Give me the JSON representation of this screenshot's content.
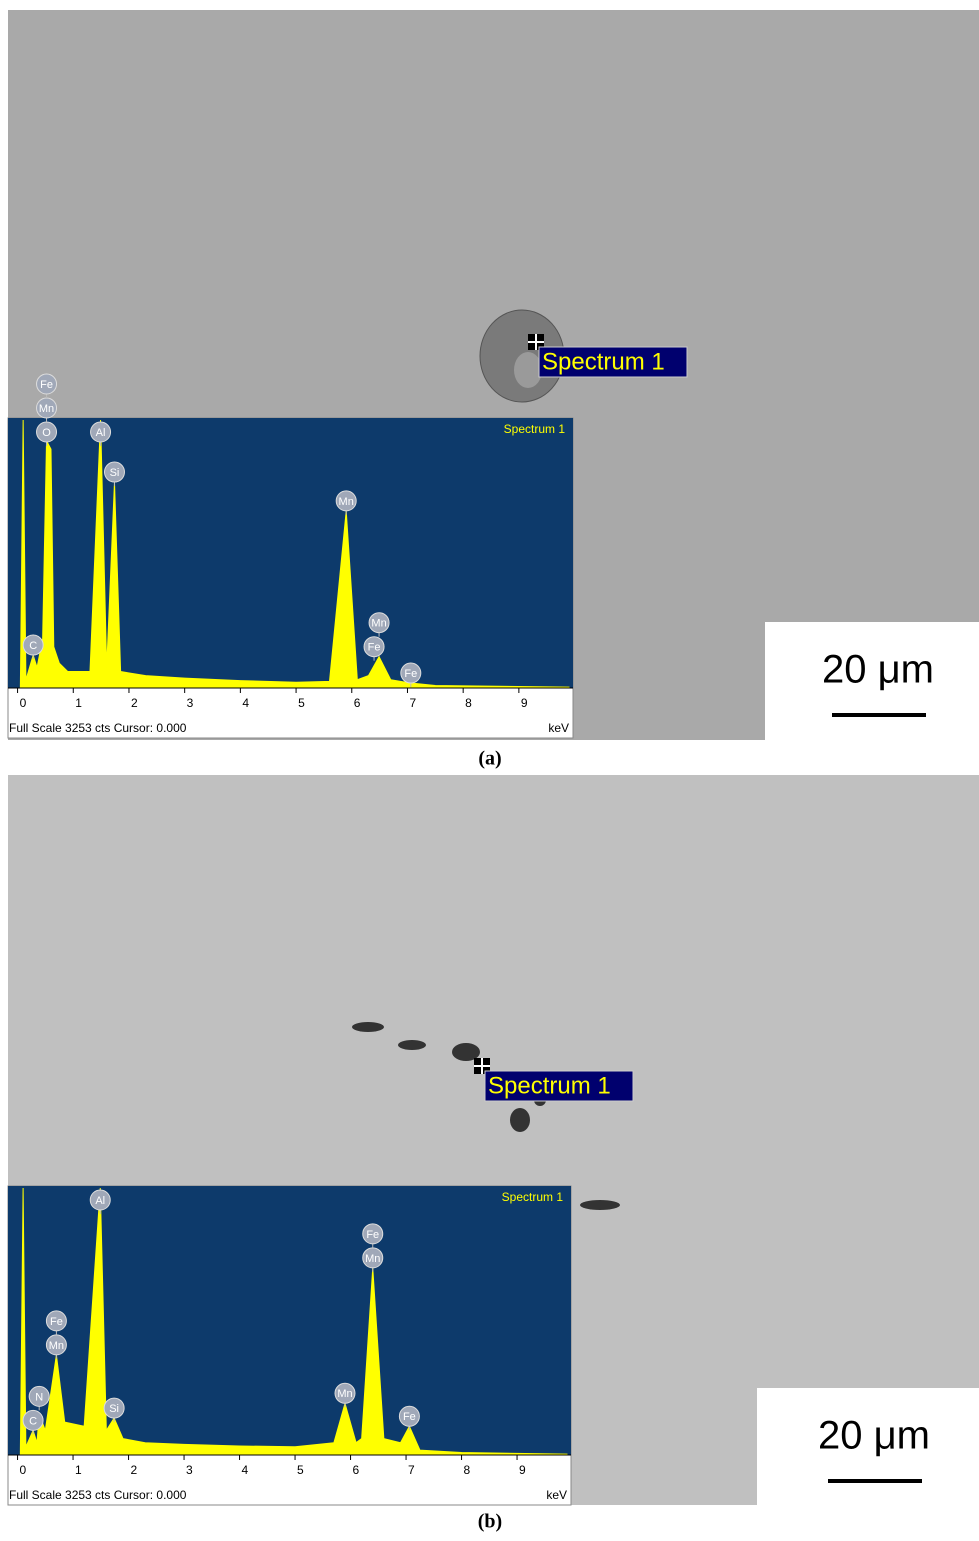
{
  "panels": [
    {
      "caption": "(a)",
      "marker_label": "Spectrum 1",
      "scale_bar": "20 μm"
    },
    {
      "caption": "(b)",
      "marker_label": "Spectrum 1",
      "scale_bar": "20 μm"
    }
  ],
  "chart_data": [
    {
      "type": "area",
      "title": "Spectrum 1",
      "footer": "Full Scale 3253 cts Cursor: 0.000",
      "x_label": "keV",
      "color": "#ffff00",
      "x": [
        0.05,
        0.1,
        0.15,
        0.28,
        0.35,
        0.45,
        0.52,
        0.6,
        0.65,
        0.75,
        0.9,
        1.3,
        1.49,
        1.6,
        1.74,
        1.85,
        2.3,
        3,
        4,
        5,
        5.6,
        5.9,
        6.1,
        6.3,
        6.49,
        6.7,
        7.06,
        7.5,
        9.9
      ],
      "values": [
        0,
        3253,
        100,
        400,
        250,
        600,
        3000,
        2900,
        500,
        300,
        200,
        200,
        3253,
        250,
        2500,
        200,
        150,
        120,
        90,
        70,
        80,
        2150,
        100,
        150,
        380,
        100,
        60,
        30,
        10
      ],
      "peaks": [
        {
          "label": "C",
          "x": 0.28
        },
        {
          "label": "O",
          "x": 0.52
        },
        {
          "label": "Mn",
          "x": 0.52
        },
        {
          "label": "Fe",
          "x": 0.52
        },
        {
          "label": "Al",
          "x": 1.49
        },
        {
          "label": "Si",
          "x": 1.74
        },
        {
          "label": "Mn",
          "x": 5.9
        },
        {
          "label": "Fe",
          "x": 6.4
        },
        {
          "label": "Mn",
          "x": 6.49
        },
        {
          "label": "Fe",
          "x": 7.06
        }
      ],
      "xlim": [
        -0.1,
        9.9
      ],
      "xticks": [
        0,
        1,
        2,
        3,
        4,
        5,
        6,
        7,
        8,
        9
      ],
      "ylim": [
        0,
        3253
      ]
    },
    {
      "type": "area",
      "title": "Spectrum 1",
      "footer": "Full Scale 3253 cts Cursor: 0.000",
      "x_label": "keV",
      "color": "#ffff00",
      "x": [
        0.05,
        0.1,
        0.15,
        0.28,
        0.35,
        0.39,
        0.5,
        0.7,
        0.85,
        1.2,
        1.49,
        1.6,
        1.74,
        1.9,
        2.3,
        3,
        4,
        5,
        5.7,
        5.9,
        6.1,
        6.2,
        6.4,
        6.6,
        6.9,
        7.06,
        7.25,
        8,
        9.9
      ],
      "values": [
        0,
        3253,
        100,
        300,
        150,
        500,
        300,
        1220,
        400,
        350,
        3253,
        300,
        450,
        200,
        150,
        130,
        110,
        100,
        150,
        630,
        150,
        200,
        2280,
        200,
        150,
        350,
        60,
        30,
        10
      ],
      "peaks": [
        {
          "label": "C",
          "x": 0.28
        },
        {
          "label": "N",
          "x": 0.39
        },
        {
          "label": "Mn",
          "x": 0.7
        },
        {
          "label": "Fe",
          "x": 0.7
        },
        {
          "label": "Al",
          "x": 1.49
        },
        {
          "label": "Si",
          "x": 1.74
        },
        {
          "label": "Mn",
          "x": 5.9
        },
        {
          "label": "Mn",
          "x": 6.4
        },
        {
          "label": "Fe",
          "x": 6.4
        },
        {
          "label": "Fe",
          "x": 7.06
        }
      ],
      "xlim": [
        -0.1,
        9.9
      ],
      "xticks": [
        0,
        1,
        2,
        3,
        4,
        5,
        6,
        7,
        8,
        9
      ],
      "ylim": [
        0,
        3253
      ]
    }
  ]
}
